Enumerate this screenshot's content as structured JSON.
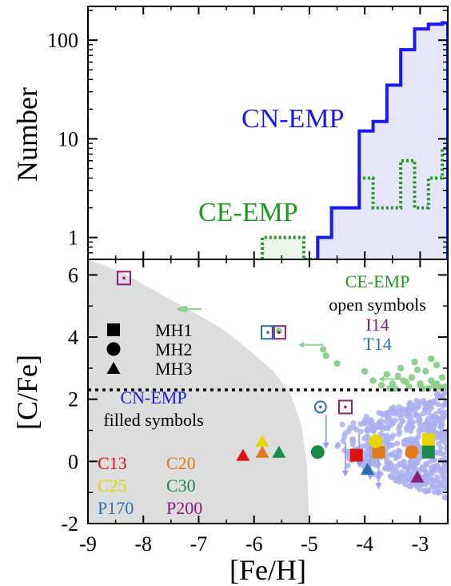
{
  "chart_data": [
    {
      "type": "area",
      "panel": "top",
      "ylabel": "Number",
      "yscale": "log",
      "ylim": [
        0.6,
        220
      ],
      "xlim": [
        -9,
        -2.5
      ],
      "yticks": [
        1,
        10,
        100
      ],
      "ytick_labels": [
        "1",
        "10",
        "100"
      ],
      "series": [
        {
          "name": "CN-EMP",
          "style": "solid",
          "color": "#1a1aee",
          "fill": "#e6e6fa",
          "edges": [
            -4.85,
            -4.6,
            -4.35,
            -4.1,
            -3.85,
            -3.6,
            -3.35,
            -3.1,
            -2.85,
            -2.6,
            -2.5
          ],
          "counts": [
            1,
            2,
            2,
            12,
            15,
            35,
            80,
            130,
            145,
            150
          ]
        },
        {
          "name": "CE-EMP",
          "style": "dotted",
          "color": "#1f9a1f",
          "fill": "#e9f7e9",
          "edges": [
            -5.85,
            -5.6,
            -5.35,
            -5.1,
            -4.85,
            -4.6,
            -4.35,
            -4.1,
            -3.85,
            -3.6,
            -3.35,
            -3.1,
            -2.85,
            -2.6,
            -2.5
          ],
          "counts": [
            1,
            1,
            1,
            0.6,
            1,
            2,
            2,
            4,
            2,
            2,
            6,
            2,
            4,
            8
          ]
        }
      ]
    },
    {
      "type": "scatter",
      "panel": "bottom",
      "xlabel": "[Fe/H]",
      "ylabel": "[C/Fe]",
      "xlim": [
        -9,
        -2.5
      ],
      "ylim": [
        -2,
        6.5
      ],
      "xticks": [
        -9,
        -8,
        -7,
        -6,
        -5,
        -4,
        -3
      ],
      "xtick_labels": [
        "-9",
        "-8",
        "-7",
        "-6",
        "-5",
        "-4",
        "-3"
      ],
      "yticks": [
        -2,
        0,
        2,
        4,
        6
      ],
      "ytick_labels": [
        "-2",
        "0",
        "2",
        "4",
        "6"
      ],
      "threshold_y": 2.3,
      "forbidden_region": {
        "fill": "#dddddd",
        "boundary": [
          [
            -9,
            6.5
          ],
          [
            -8.4,
            6.1
          ],
          [
            -7.8,
            5.5
          ],
          [
            -7.2,
            4.9
          ],
          [
            -6.6,
            4.3
          ],
          [
            -6.1,
            3.6
          ],
          [
            -5.65,
            2.9
          ],
          [
            -5.35,
            2.2
          ],
          [
            -5.15,
            1.2
          ],
          [
            -5.05,
            0
          ],
          [
            -5.0,
            -2
          ]
        ]
      },
      "models": [
        {
          "label": "C13",
          "color": "#dd1111",
          "feh": [
            -6.2,
            -4.15
          ],
          "cfe": [
            0.2,
            0.2
          ],
          "markers": [
            "triangle",
            "square"
          ]
        },
        {
          "label": "C20",
          "color": "#e07a1a",
          "feh": [
            -5.85,
            -3.75,
            -3.15
          ],
          "cfe": [
            0.3,
            0.3,
            0.3
          ],
          "markers": [
            "triangle",
            "square",
            "circle"
          ]
        },
        {
          "label": "C25",
          "color": "#e6d500",
          "feh": [
            -5.85,
            -3.8,
            -2.85
          ],
          "cfe": [
            0.65,
            0.65,
            0.7
          ],
          "markers": [
            "triangle",
            "circle",
            "square"
          ]
        },
        {
          "label": "C30",
          "color": "#1a8a4a",
          "feh": [
            -5.55,
            -4.85,
            -2.85
          ],
          "cfe": [
            0.3,
            0.3,
            0.3
          ],
          "markers": [
            "triangle",
            "circle",
            "square"
          ]
        },
        {
          "label": "P170",
          "color": "#2a6fb0",
          "feh": [
            -3.95
          ],
          "cfe": [
            -0.25
          ],
          "markers": [
            "triangle"
          ]
        },
        {
          "label": "P200",
          "color": "#8e1a7a",
          "feh": [
            -3.05
          ],
          "cfe": [
            -0.5
          ],
          "markers": [
            "triangle"
          ]
        }
      ],
      "observed_open": [
        {
          "ref": "I14",
          "color": "#8e1a7a",
          "feh": [
            -8.35,
            -5.55,
            -4.35
          ],
          "cfe": [
            5.9,
            4.15,
            1.75
          ]
        },
        {
          "ref": "T14",
          "color": "#2a6fb0",
          "feh": [
            -5.75
          ],
          "cfe": [
            4.15
          ]
        },
        {
          "ref": "circled",
          "color": "#2a6fb0",
          "feh": [
            -4.8
          ],
          "cfe": [
            1.75
          ]
        }
      ],
      "ce_emp_points": {
        "color": "#8fd08f",
        "feh": [
          -7.25,
          -5.55,
          -4.75,
          -4.7,
          -4.5,
          -4.0,
          -3.85,
          -3.7,
          -3.6,
          -3.5,
          -3.45,
          -3.35,
          -3.3,
          -3.2,
          -3.15,
          -3.1,
          -3.0,
          -2.95,
          -2.9,
          -2.8,
          -2.75,
          -2.7,
          -2.65,
          -2.6,
          -3.55,
          -3.25,
          -3.05,
          -2.85,
          -2.7,
          -2.55,
          -3.4,
          -3.0,
          -2.8
        ],
        "cfe": [
          4.9,
          4.2,
          3.6,
          3.4,
          3.15,
          2.9,
          2.6,
          2.45,
          2.8,
          2.5,
          2.35,
          3.0,
          2.6,
          2.4,
          2.7,
          3.2,
          2.5,
          2.35,
          2.9,
          2.6,
          2.45,
          3.1,
          2.4,
          2.7,
          2.35,
          2.55,
          2.95,
          2.35,
          2.5,
          2.4,
          2.75,
          2.45,
          3.3
        ]
      },
      "cn_emp_cloud": {
        "color": "#aab0f0",
        "xrange": [
          -4.5,
          -2.5
        ],
        "yrange": [
          -1.2,
          2.3
        ]
      },
      "upper_limits": {
        "feh": [
          -4.7,
          -4.35,
          -4.1,
          -3.9,
          -3.75
        ],
        "cfe": [
          1.5,
          0.6,
          0.9,
          0.5,
          0.2
        ]
      },
      "annotations": {
        "ce_title": "CE-EMP",
        "open_label": "open symbols",
        "i14": "I14",
        "t14": "T14",
        "cn_title": "CN-EMP",
        "filled_label": "filled symbols"
      },
      "legend_markers": [
        {
          "label": "MH1",
          "marker": "square"
        },
        {
          "label": "MH2",
          "marker": "circle"
        },
        {
          "label": "MH3",
          "marker": "triangle"
        }
      ],
      "model_labels": [
        {
          "text": "C13",
          "color": "#dd1111"
        },
        {
          "text": "C20",
          "color": "#e07a1a"
        },
        {
          "text": "C25",
          "color": "#e6d500"
        },
        {
          "text": "C30",
          "color": "#1a8a4a"
        },
        {
          "text": "P170",
          "color": "#2a6fb0"
        },
        {
          "text": "P200",
          "color": "#8e1a7a"
        }
      ]
    }
  ]
}
